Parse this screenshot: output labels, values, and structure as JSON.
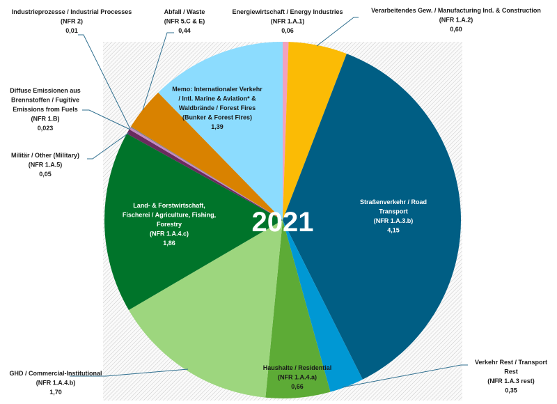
{
  "chart_data": {
    "type": "pie",
    "title": "2021",
    "start": "12 o'clock, clockwise",
    "background": "grey hatched square",
    "slices": [
      {
        "key": "energie",
        "lines": [
          "Energiewirtschaft / Energy Industries",
          "(NFR 1.A.1)",
          "0,06"
        ],
        "value": 0.06,
        "color": "#f2a2bf"
      },
      {
        "key": "verarb",
        "lines": [
          "Verarbeitendes Gew. / Manufacturing Ind. & Construction",
          "(NFR 1.A.2)",
          "0,60"
        ],
        "value": 0.6,
        "color": "#fbbb05"
      },
      {
        "key": "strasse",
        "lines": [
          "Straßenverkehr / Road",
          "Transport",
          "(NFR 1.A.3.b)",
          "4,15"
        ],
        "value": 4.15,
        "color": "#005e84"
      },
      {
        "key": "verkehrrest",
        "lines": [
          "Verkehr Rest / Transport",
          "Rest",
          "(NFR 1.A.3 rest)",
          "0,35"
        ],
        "value": 0.35,
        "color": "#0098d4"
      },
      {
        "key": "haushalte",
        "lines": [
          "Haushalte / Residential",
          "(NFR 1.A.4.a)",
          "0,66"
        ],
        "value": 0.66,
        "color": "#5dab36"
      },
      {
        "key": "ghd",
        "lines": [
          "GHD / Commercial-Institutional",
          "(NFR 1.A.4.b)",
          "1,70"
        ],
        "value": 1.7,
        "color": "#9dd67e"
      },
      {
        "key": "land",
        "lines": [
          "Land- & Forstwirtschaft,",
          "Fischerei / Agriculture, Fishing,",
          "Forestry",
          "(NFR 1.A.4.c)",
          "1,86"
        ],
        "value": 1.86,
        "color": "#00742a"
      },
      {
        "key": "militaer",
        "lines": [
          "Militär / Other (Military)",
          "(NFR 1.A.5)",
          "0,05"
        ],
        "value": 0.05,
        "color": "#6a2b5e"
      },
      {
        "key": "diffuse",
        "lines": [
          "Diffuse Emissionen aus",
          "Brennstoffen / Fugitive",
          "Emissions from Fuels",
          "(NFR 1.B)",
          "0,023"
        ],
        "value": 0.023,
        "color": "#c48ac4"
      },
      {
        "key": "industrie",
        "lines": [
          "Industrieprozesse / Industrial Processes",
          "(NFR 2)",
          "0,01"
        ],
        "value": 0.01,
        "color": "#7f7f7f"
      },
      {
        "key": "abfall",
        "lines": [
          "Abfall / Waste",
          "(NFR 5.C & E)",
          "0,44"
        ],
        "value": 0.44,
        "color": "#d98200"
      },
      {
        "key": "memo",
        "lines": [
          "Memo: Internationaler Verkehr",
          "/ Intl. Marine & Aviation* &",
          "Waldbrände / Forest Fires",
          "(Bunker & Forest Fires)",
          "1,39"
        ],
        "value": 1.39,
        "color": "#8cdcfe"
      }
    ]
  }
}
